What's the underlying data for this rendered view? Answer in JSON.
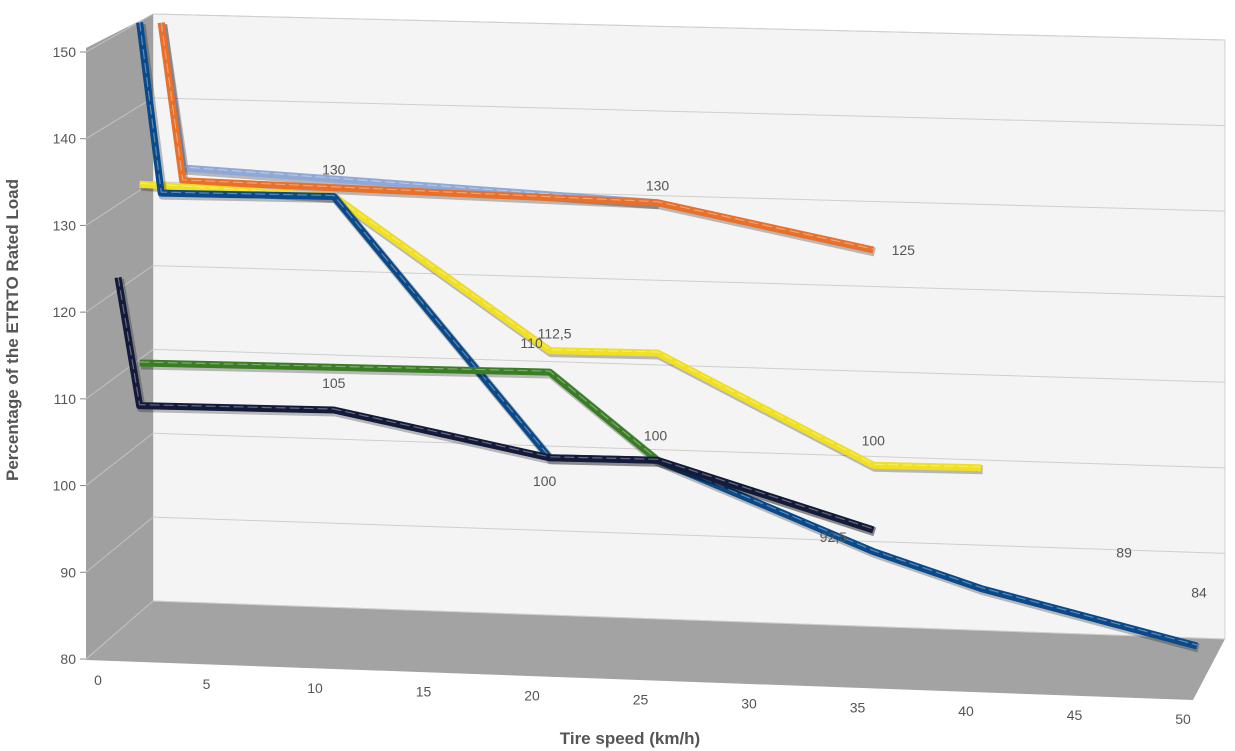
{
  "chart_data": {
    "type": "line",
    "subtype": "3d-line",
    "title": "",
    "xlabel": "Tire speed (km/h)",
    "ylabel": "Percentage of the ETRTO Rated Load",
    "xlim": [
      0,
      50
    ],
    "ylim": [
      80,
      150
    ],
    "x_ticks": [
      "0",
      "5",
      "10",
      "15",
      "20",
      "25",
      "30",
      "35",
      "40",
      "45",
      "50"
    ],
    "y_ticks": [
      "80",
      "90",
      "100",
      "110",
      "120",
      "130",
      "140",
      "150"
    ],
    "grid": true,
    "legend": "none",
    "series": [
      {
        "color": "#8fa8d8",
        "points": [
          [
            2,
            150
          ],
          [
            3,
            133
          ],
          [
            25,
            130
          ]
        ]
      },
      {
        "color": "#e8702a",
        "points": [
          [
            2,
            150
          ],
          [
            3,
            131.5
          ],
          [
            25,
            130
          ],
          [
            35,
            125
          ]
        ]
      },
      {
        "color": "#f0e020",
        "points": [
          [
            1,
            131
          ],
          [
            10,
            130
          ],
          [
            20,
            112.5
          ],
          [
            25,
            112.5
          ],
          [
            35,
            100
          ],
          [
            40,
            100
          ]
        ]
      },
      {
        "color": "#0a4a8a",
        "points": [
          [
            1,
            150
          ],
          [
            2,
            130
          ],
          [
            10,
            130
          ],
          [
            20,
            100
          ],
          [
            25,
            100
          ],
          [
            30,
            95
          ],
          [
            35,
            90
          ],
          [
            40,
            86
          ],
          [
            50,
            80
          ]
        ]
      },
      {
        "color": "#3a7d25",
        "points": [
          [
            1,
            110
          ],
          [
            20,
            110
          ],
          [
            25,
            100
          ],
          [
            35,
            92.5
          ]
        ]
      },
      {
        "color": "#141a3a",
        "points": [
          [
            0,
            120
          ],
          [
            1,
            105
          ],
          [
            10,
            105
          ],
          [
            20,
            100
          ],
          [
            25,
            100
          ],
          [
            35,
            92.5
          ]
        ]
      }
    ],
    "annotations": [
      {
        "text": "130",
        "x": 10,
        "y": 130
      },
      {
        "text": "130",
        "x": 25,
        "y": 130
      },
      {
        "text": "125",
        "x": 35,
        "y": 125
      },
      {
        "text": "112,5",
        "x": 20,
        "y": 112.5
      },
      {
        "text": "110",
        "x": 20,
        "y": 110
      },
      {
        "text": "105",
        "x": 10,
        "y": 105
      },
      {
        "text": "100",
        "x": 25,
        "y": 100
      },
      {
        "text": "100",
        "x": 20,
        "y": 100
      },
      {
        "text": "100",
        "x": 35,
        "y": 100
      },
      {
        "text": "92,5",
        "x": 35,
        "y": 92.5
      },
      {
        "text": "89",
        "x": 45,
        "y": 89
      },
      {
        "text": "84",
        "x": 50,
        "y": 84
      }
    ]
  }
}
